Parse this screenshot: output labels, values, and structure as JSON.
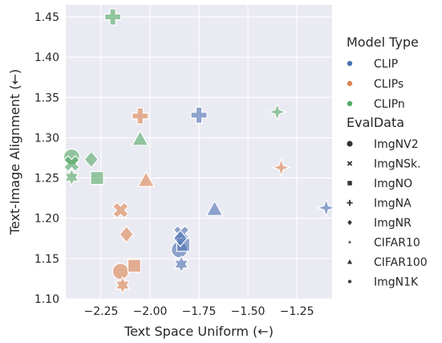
{
  "chart_data": {
    "type": "scatter",
    "xlabel": "Text Space Uniform (←)",
    "ylabel": "Text-Image Alignment (←)",
    "xlim": [
      -2.43,
      -1.07
    ],
    "ylim": [
      1.1,
      1.465
    ],
    "xticks": [
      -2.25,
      -2.0,
      -1.75,
      -1.5,
      -1.25
    ],
    "xtick_labels": [
      "−2.25",
      "−2.00",
      "−1.75",
      "−1.50",
      "−1.25"
    ],
    "yticks": [
      1.1,
      1.15,
      1.2,
      1.25,
      1.3,
      1.35,
      1.4,
      1.45
    ],
    "ytick_labels": [
      "1.10",
      "1.15",
      "1.20",
      "1.25",
      "1.30",
      "1.35",
      "1.40",
      "1.45"
    ],
    "grid": true,
    "legend": {
      "placement": "outside-right",
      "hue_title": "Model Type",
      "hue_entries": [
        {
          "label": "CLIP",
          "color": "#4c72b0"
        },
        {
          "label": "CLIPs",
          "color": "#dd8452"
        },
        {
          "label": "CLIPn",
          "color": "#55a868"
        }
      ],
      "style_title": "EvalData",
      "style_entries": [
        {
          "label": "ImgNV2",
          "marker": "circle"
        },
        {
          "label": "ImgNSk.",
          "marker": "x"
        },
        {
          "label": "ImgNO",
          "marker": "square"
        },
        {
          "label": "ImgNA",
          "marker": "plus"
        },
        {
          "label": "ImgNR",
          "marker": "diamond"
        },
        {
          "label": "CIFAR10",
          "marker": "star4"
        },
        {
          "label": "CIFAR100",
          "marker": "triangle"
        },
        {
          "label": "ImgN1K",
          "marker": "star6"
        }
      ]
    },
    "series": [
      {
        "name": "CLIP",
        "color": "#4c72b0",
        "points": [
          {
            "dataset": "ImgNV2",
            "x": -1.85,
            "y": 1.161
          },
          {
            "dataset": "ImgNSk.",
            "x": -1.84,
            "y": 1.181
          },
          {
            "dataset": "ImgNO",
            "x": -1.83,
            "y": 1.167
          },
          {
            "dataset": "ImgNA",
            "x": -1.75,
            "y": 1.328
          },
          {
            "dataset": "ImgNR",
            "x": -1.845,
            "y": 1.175
          },
          {
            "dataset": "CIFAR10",
            "x": -1.1,
            "y": 1.213
          },
          {
            "dataset": "CIFAR100",
            "x": -1.67,
            "y": 1.211
          },
          {
            "dataset": "ImgN1K",
            "x": -1.84,
            "y": 1.143
          }
        ]
      },
      {
        "name": "CLIPs",
        "color": "#dd8452",
        "points": [
          {
            "dataset": "ImgNV2",
            "x": -2.15,
            "y": 1.134
          },
          {
            "dataset": "ImgNSk.",
            "x": -2.15,
            "y": 1.21
          },
          {
            "dataset": "ImgNO",
            "x": -2.08,
            "y": 1.141
          },
          {
            "dataset": "ImgNA",
            "x": -2.05,
            "y": 1.327
          },
          {
            "dataset": "ImgNR",
            "x": -2.12,
            "y": 1.18
          },
          {
            "dataset": "CIFAR10",
            "x": -1.33,
            "y": 1.263
          },
          {
            "dataset": "CIFAR100",
            "x": -2.02,
            "y": 1.247
          },
          {
            "dataset": "ImgN1K",
            "x": -2.14,
            "y": 1.117
          }
        ]
      },
      {
        "name": "CLIPn",
        "color": "#55a868",
        "points": [
          {
            "dataset": "ImgNV2",
            "x": -2.4,
            "y": 1.276
          },
          {
            "dataset": "ImgNSk.",
            "x": -2.4,
            "y": 1.268
          },
          {
            "dataset": "ImgNO",
            "x": -2.27,
            "y": 1.25
          },
          {
            "dataset": "ImgNA",
            "x": -2.19,
            "y": 1.45
          },
          {
            "dataset": "ImgNR",
            "x": -2.3,
            "y": 1.273
          },
          {
            "dataset": "CIFAR10",
            "x": -1.35,
            "y": 1.332
          },
          {
            "dataset": "CIFAR100",
            "x": -2.05,
            "y": 1.298
          },
          {
            "dataset": "ImgN1K",
            "x": -2.4,
            "y": 1.251
          }
        ]
      }
    ]
  }
}
